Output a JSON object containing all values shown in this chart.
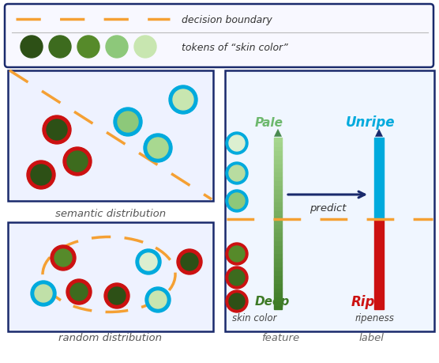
{
  "bg_color": "#ffffff",
  "border_color": "#1a2a6c",
  "orange": "#f5a033",
  "red": "#cc1111",
  "cyan": "#00aadd",
  "dark_navy": "#1a2a6c",
  "random_dist_label": "random distribution",
  "semantic_dist_label": "semantic distribution",
  "feature_label": "feature",
  "label_label": "label",
  "skin_color_label": "skin color",
  "ripeness_label": "ripeness",
  "deep_label": "Deep",
  "ripe_label": "Ripe",
  "pale_label": "Pale",
  "unripe_label": "Unripe",
  "predict_label": "predict",
  "tokens_label": "tokens of “skin color”",
  "boundary_label": "decision boundary",
  "token_colors": [
    "#2d5016",
    "#3d6b1e",
    "#568a2a",
    "#7db84a",
    "#b8dca0",
    "#dcefd0"
  ],
  "green_dark": "#2d5016",
  "green_med": "#568a2a",
  "green_light": "#b8dca0",
  "green_pale": "#dcefd0"
}
